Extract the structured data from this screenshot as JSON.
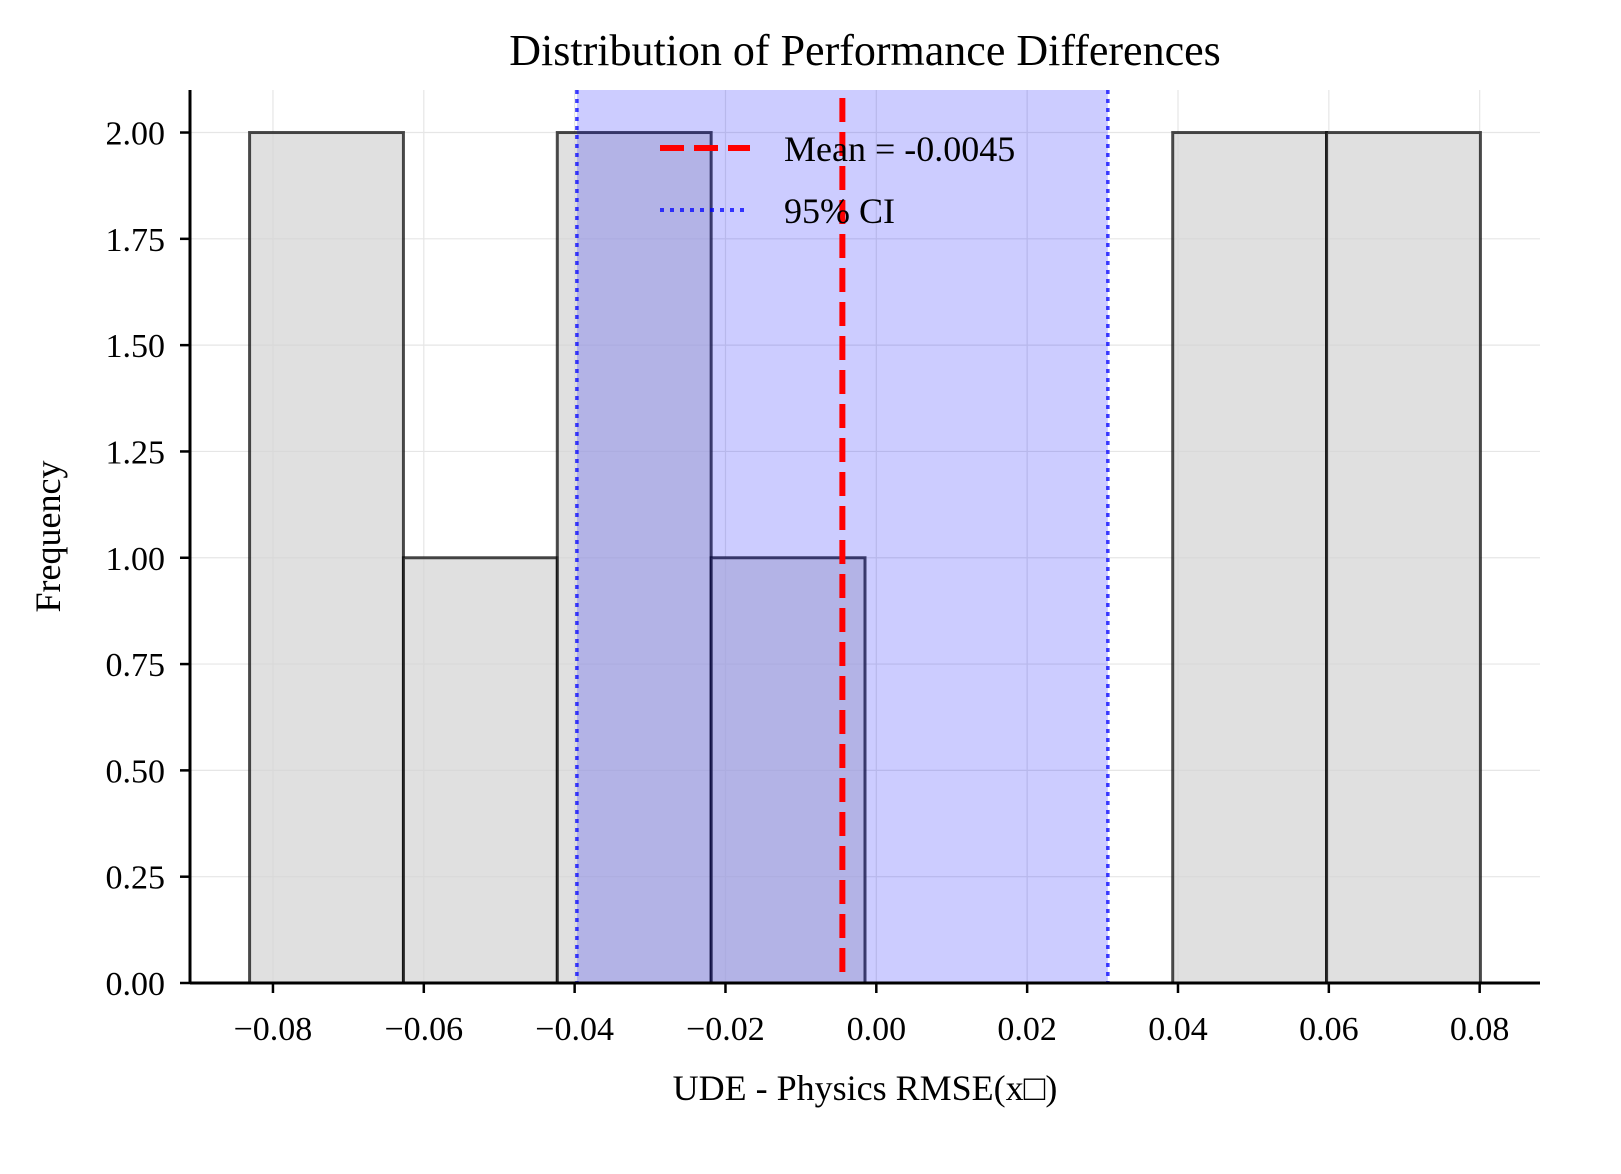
{
  "chart_data": {
    "type": "bar",
    "title": "Distribution of Performance Differences",
    "xlabel": "UDE - Physics RMSE(x□)",
    "ylabel": "Frequency",
    "xlim": [
      -0.091,
      0.088
    ],
    "ylim": [
      0,
      2.1
    ],
    "xticks": [
      -0.08,
      -0.06,
      -0.04,
      -0.02,
      0.0,
      0.02,
      0.04,
      0.06,
      0.08
    ],
    "xtick_labels": [
      "−0.08",
      "−0.06",
      "−0.04",
      "−0.02",
      "0.00",
      "0.02",
      "0.04",
      "0.06",
      "0.08"
    ],
    "yticks": [
      0,
      0.25,
      0.5,
      0.75,
      1.0,
      1.25,
      1.5,
      1.75,
      2.0
    ],
    "ytick_labels": [
      "0.00",
      "0.25",
      "0.50",
      "0.75",
      "1.00",
      "1.25",
      "1.50",
      "1.75",
      "2.00"
    ],
    "bins": [
      -0.0831,
      -0.0627,
      -0.0423,
      -0.0219,
      -0.0015,
      0.0189,
      0.0393,
      0.0597,
      0.0801
    ],
    "counts": [
      2,
      1,
      2,
      1,
      0,
      0,
      2,
      2
    ],
    "mean": -0.0045,
    "ci95": [
      -0.0397,
      0.0307
    ],
    "grid": true,
    "legend_position": "top-center",
    "legend": [
      {
        "label": "Mean = -0.0045",
        "style": "dashed",
        "color": "#ff0000"
      },
      {
        "label": "95% CI",
        "style": "dotted",
        "color": "#0000ff"
      }
    ],
    "colors": {
      "bar_fill": "#d3d3d3",
      "bar_edge": "#000000",
      "ci_fill": "#0000ff",
      "mean_line": "#ff0000",
      "ci_line": "#0000ff"
    }
  }
}
